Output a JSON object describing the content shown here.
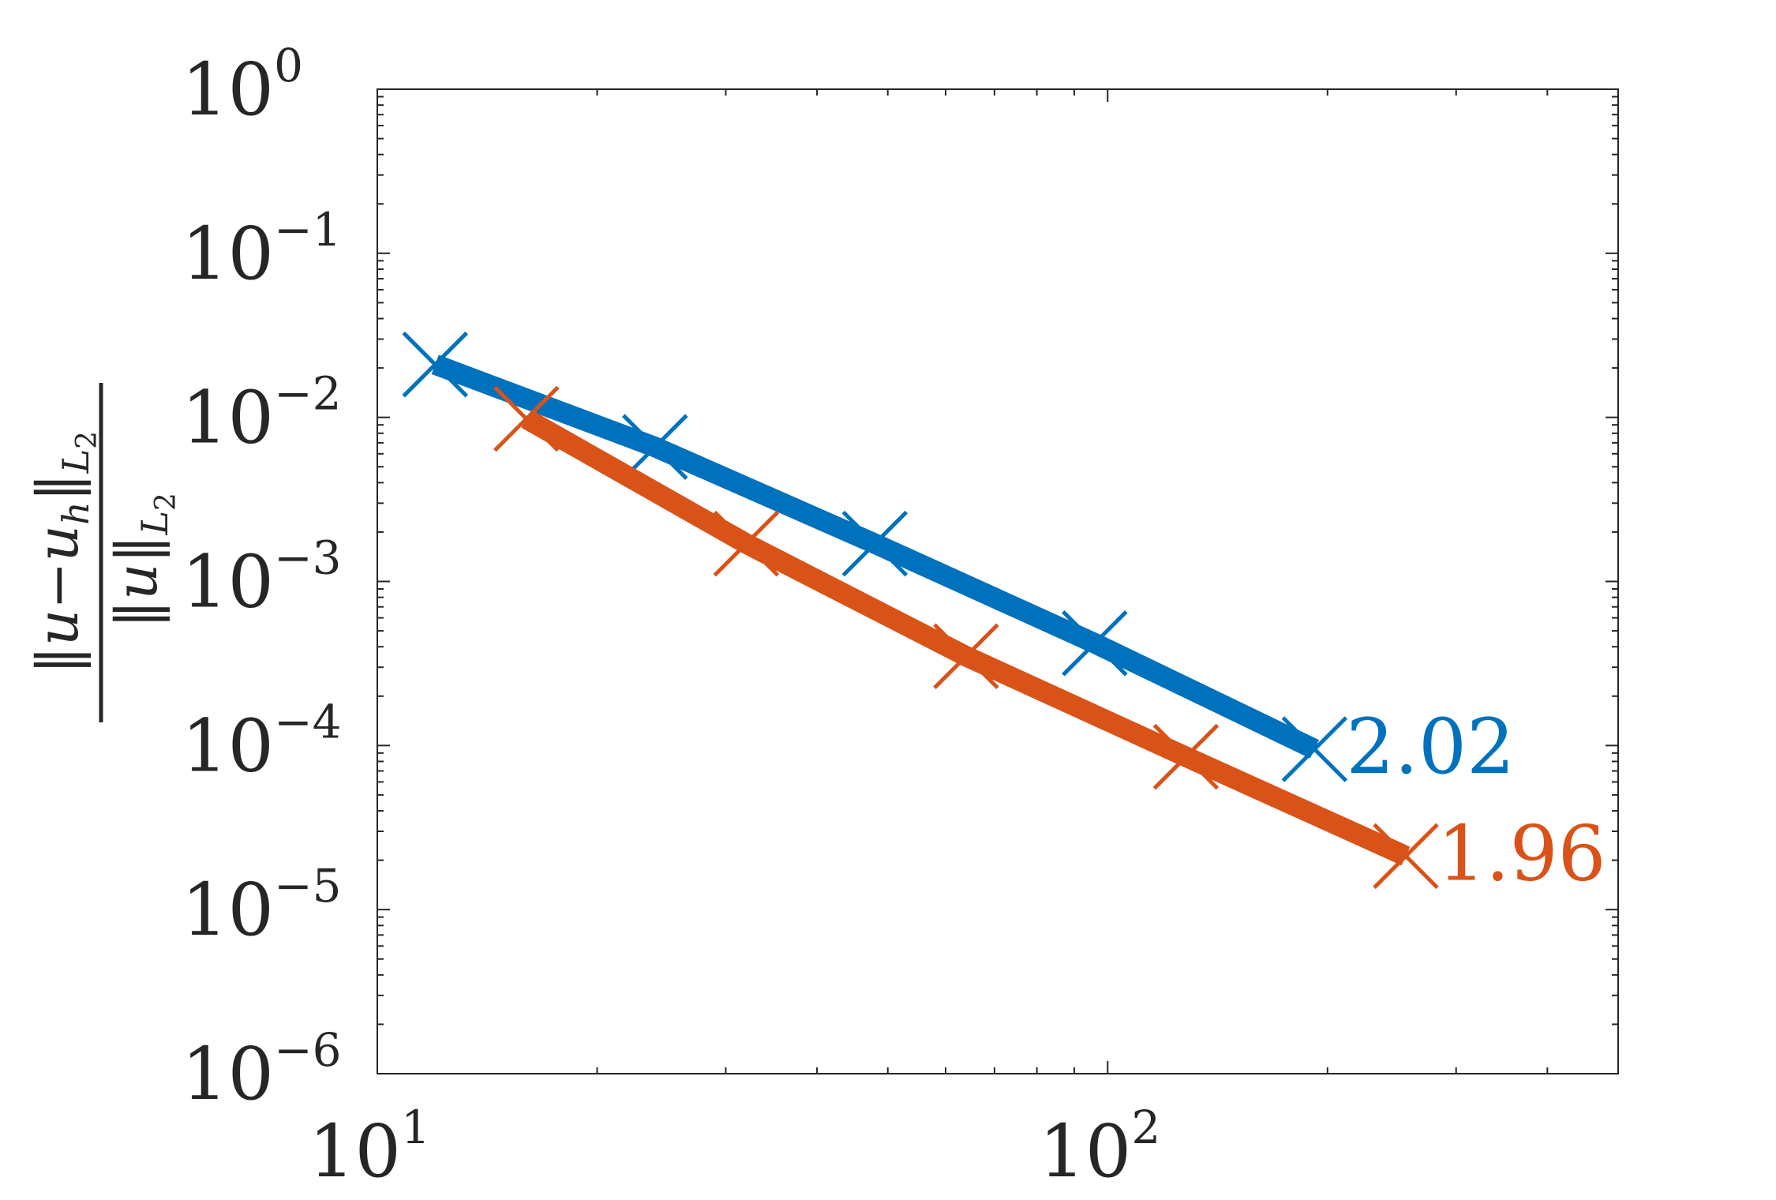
{
  "chart_data": {
    "type": "line",
    "title": "",
    "xlabel": "",
    "ylabel": {
      "numerator": "||u−u_h||_{L_2}",
      "denominator": "||u||_{L_2}",
      "num_main": "‖u−u",
      "num_sub1": "h",
      "num_close": "‖",
      "num_sub2": "L",
      "num_sub3": "2",
      "den_main": "‖u‖",
      "den_sub1": "L",
      "den_sub2": "2"
    },
    "xscale": "log",
    "yscale": "log",
    "xlim": [
      10,
      500
    ],
    "ylim": [
      1e-06,
      1
    ],
    "x_ticks": [
      {
        "value": 10,
        "base": "10",
        "exp": "1"
      },
      {
        "value": 100,
        "base": "10",
        "exp": "2"
      }
    ],
    "y_ticks": [
      {
        "value": 1,
        "base": "10",
        "exp": "0"
      },
      {
        "value": 0.1,
        "base": "10",
        "exp": "−1"
      },
      {
        "value": 0.01,
        "base": "10",
        "exp": "−2"
      },
      {
        "value": 0.001,
        "base": "10",
        "exp": "−3"
      },
      {
        "value": 0.0001,
        "base": "10",
        "exp": "−4"
      },
      {
        "value": 1e-05,
        "base": "10",
        "exp": "−5"
      },
      {
        "value": 1e-06,
        "base": "10",
        "exp": "−6"
      }
    ],
    "series": [
      {
        "color": "#0072bd",
        "marker": "x",
        "x": [
          12,
          24,
          48,
          96,
          192
        ],
        "y": [
          0.021,
          0.0066,
          0.0017,
          0.00042,
          9.5e-05
        ],
        "end_label": "2.02"
      },
      {
        "color": "#d95319",
        "marker": "x",
        "x": [
          16,
          32,
          64,
          128,
          256
        ],
        "y": [
          0.0098,
          0.0017,
          0.00035,
          8.54e-05,
          2.12e-05
        ],
        "end_label": "1.96"
      }
    ],
    "grid": false,
    "legend": "none"
  }
}
